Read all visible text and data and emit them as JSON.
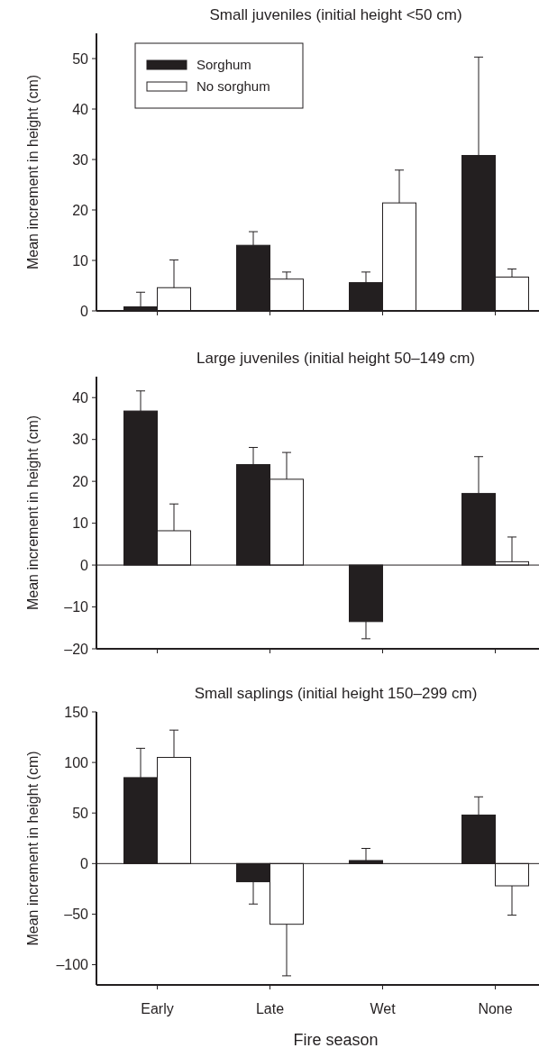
{
  "chart_data": [
    {
      "type": "bar",
      "title": "Small juveniles (initial height <50 cm)",
      "ylabel": "Mean increment in height (cm)",
      "categories": [
        null,
        null,
        null,
        null
      ],
      "ylim": [
        0,
        55
      ],
      "yticks": [
        0,
        10,
        20,
        30,
        40,
        50
      ],
      "legend": "top left",
      "tick_labels": "y",
      "series": [
        {
          "name": "Sorghum",
          "color": "#231f20",
          "values": [
            0.8,
            13,
            5.6,
            30.8
          ],
          "errors": [
            [
              0.8,
              3.7
            ],
            [
              13,
              15.7
            ],
            [
              5.6,
              7.7
            ],
            [
              30.8,
              50.3
            ]
          ]
        },
        {
          "name": "No sorghum",
          "color": "#ffffff",
          "values": [
            4.6,
            6.3,
            21.4,
            6.7
          ],
          "errors": [
            [
              4.6,
              10.1
            ],
            [
              6.3,
              7.7
            ],
            [
              21.4,
              27.9
            ],
            [
              6.7,
              8.3
            ]
          ]
        }
      ]
    },
    {
      "type": "bar",
      "title": "Large juveniles (initial height 50–149 cm)",
      "ylabel": "Mean increment in height (cm)",
      "categories": [
        null,
        null,
        null,
        null
      ],
      "ylim": [
        -20,
        45
      ],
      "yticks": [
        {
          "value": -20,
          "label": "–20"
        },
        {
          "value": -10,
          "label": "–10"
        },
        0,
        10,
        20,
        30,
        40
      ],
      "legend": false,
      "tick_labels": "y",
      "series": [
        {
          "color": "#231f20",
          "values": [
            36.8,
            24,
            -13.5,
            17.1
          ],
          "errors": [
            [
              36.8,
              41.6
            ],
            [
              24,
              28.1
            ],
            [
              -17.6,
              -13.5
            ],
            [
              17.1,
              25.9
            ]
          ]
        },
        {
          "color": "#ffffff",
          "values": [
            8.2,
            20.5,
            null,
            0.8
          ],
          "errors": [
            [
              8.2,
              14.6
            ],
            [
              20.5,
              26.9
            ],
            null,
            [
              0.8,
              6.7
            ]
          ]
        }
      ]
    },
    {
      "type": "bar",
      "title": "Small saplings (initial height 150–299 cm)",
      "ylabel": "Mean increment in height (cm)",
      "xlabel": "Fire season",
      "categories": [
        "Early",
        "Late",
        "Wet",
        "None"
      ],
      "ylim": [
        -120,
        150
      ],
      "yticks": [
        {
          "value": -100,
          "label": "–100"
        },
        {
          "value": -50,
          "label": "–50"
        },
        0,
        50,
        100,
        150
      ],
      "legend": false,
      "series": [
        {
          "color": "#231f20",
          "values": [
            85,
            -18,
            3,
            48
          ],
          "errors": [
            [
              85,
              114
            ],
            [
              -40,
              -18
            ],
            [
              3,
              15
            ],
            [
              48,
              66
            ]
          ]
        },
        {
          "color": "#ffffff",
          "values": [
            105,
            -60,
            null,
            -22
          ],
          "errors": [
            [
              105,
              132
            ],
            [
              -111,
              -60
            ],
            null,
            [
              -51,
              -22
            ]
          ]
        }
      ]
    }
  ]
}
